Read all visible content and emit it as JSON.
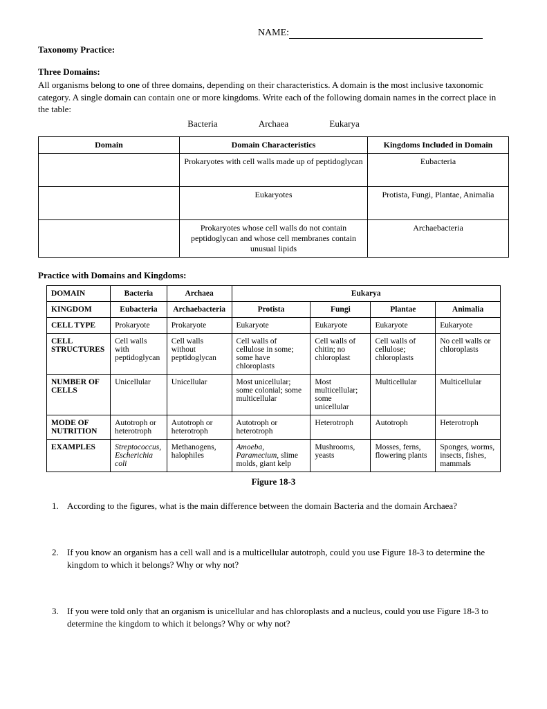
{
  "header": {
    "name_label": "NAME:"
  },
  "section1": {
    "title": "Taxonomy Practice:",
    "subtitle": "Three Domains:",
    "intro": "All organisms belong to one of three domains, depending on their characteristics. A domain is the most inclusive taxonomic category. A single domain can contain one or more kingdoms. Write each of the following domain names in the correct place in the table:",
    "word_bank": [
      "Bacteria",
      "Archaea",
      "Eukarya"
    ]
  },
  "table1": {
    "headers": [
      "Domain",
      "Domain Characteristics",
      "Kingdoms Included in Domain"
    ],
    "rows": [
      {
        "domain": "",
        "char": "Prokaryotes with cell walls made up of peptidoglycan",
        "kingdoms": "Eubacteria"
      },
      {
        "domain": "",
        "char": "Eukaryotes",
        "kingdoms": "Protista, Fungi, Plantae, Animalia"
      },
      {
        "domain": "",
        "char": "Prokaryotes whose cell walls do not contain peptidoglycan and whose cell membranes contain unusual lipids",
        "kingdoms": "Archaebacteria"
      }
    ]
  },
  "section2": {
    "title": "Practice with Domains and Kingdoms:"
  },
  "table2": {
    "header_row1": {
      "label": "DOMAIN",
      "bacteria": "Bacteria",
      "archaea": "Archaea",
      "eukarya": "Eukarya"
    },
    "header_row2": {
      "label": "KINGDOM",
      "cells": [
        "Eubacteria",
        "Archaebacteria",
        "Protista",
        "Fungi",
        "Plantae",
        "Animalia"
      ]
    },
    "rows": [
      {
        "label": "CELL TYPE",
        "cells": [
          "Prokaryote",
          "Prokaryote",
          "Eukaryote",
          "Eukaryote",
          "Eukaryote",
          "Eukaryote"
        ]
      },
      {
        "label": "CELL STRUCTURES",
        "cells": [
          "Cell walls with peptidoglycan",
          "Cell walls without peptidoglycan",
          "Cell walls of cellulose in some; some have chloroplasts",
          "Cell walls of chitin; no chloroplast",
          "Cell walls of cellulose; chloroplasts",
          "No cell walls or chloroplasts"
        ]
      },
      {
        "label": "NUMBER OF CELLS",
        "cells": [
          "Unicellular",
          "Unicellular",
          "Most unicellular; some colonial; some multicellular",
          "Most multicellular; some unicellular",
          "Multicellular",
          "Multicellular"
        ]
      },
      {
        "label": "MODE OF NUTRITION",
        "cells": [
          "Autotroph or heterotroph",
          "Autotroph or heterotroph",
          "Autotroph or heterotroph",
          "Heterotroph",
          "Autotroph",
          "Heterotroph"
        ]
      }
    ],
    "examples_row": {
      "label": "EXAMPLES",
      "cells_html": [
        "<span class=\"italic\">Streptococcus, Escherichia coli</span>",
        "Methanogens, halophiles",
        "<span class=\"italic\">Amoeba, Paramecium</span>, slime molds, giant kelp",
        "Mushrooms, yeasts",
        "Mosses, ferns, flowering plants",
        "Sponges, worms, insects, fishes, mammals"
      ]
    },
    "caption": "Figure 18-3"
  },
  "questions": [
    {
      "num": "1.",
      "text": "According to the figures, what is the main difference between the domain Bacteria and the domain Archaea?"
    },
    {
      "num": "2.",
      "text": "If you know an organism has a cell wall and is a multicellular autotroph, could you use Figure 18-3 to determine the kingdom to which it belongs? Why or why not?"
    },
    {
      "num": "3.",
      "text": "If you were told only that an organism is unicellular and has chloroplasts and a nucleus, could you use Figure 18-3 to determine the kingdom to which it belongs? Why or why not?"
    }
  ]
}
